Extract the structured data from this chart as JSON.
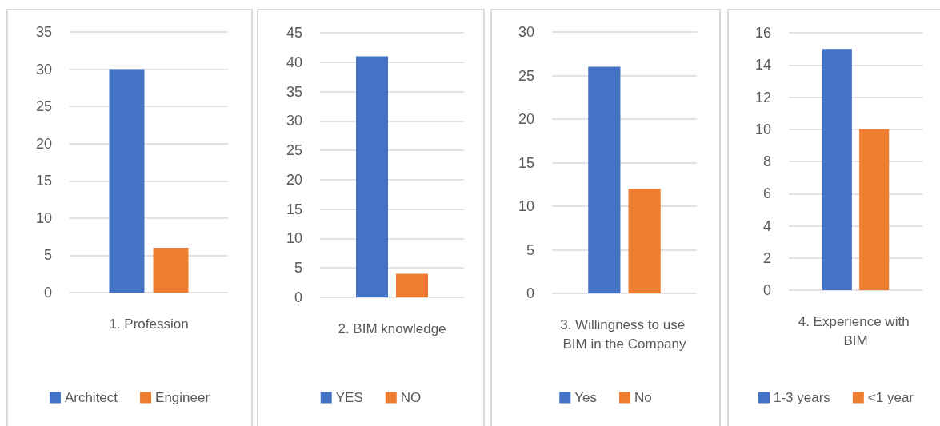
{
  "chart_data": [
    {
      "type": "bar",
      "categories": [
        "1. Profession"
      ],
      "series": [
        {
          "name": "Architect",
          "color": "#4472c4",
          "values": [
            30
          ]
        },
        {
          "name": "Engineer",
          "color": "#ed7d31",
          "values": [
            6
          ]
        }
      ],
      "ylim": [
        0,
        35
      ],
      "yticks": [
        0,
        5,
        10,
        15,
        20,
        25,
        30,
        35
      ],
      "grid": "y",
      "legend": "bottom"
    },
    {
      "type": "bar",
      "categories": [
        "2. BIM knowledge"
      ],
      "series": [
        {
          "name": "YES",
          "color": "#4472c4",
          "values": [
            41
          ]
        },
        {
          "name": "NO",
          "color": "#ed7d31",
          "values": [
            4
          ]
        }
      ],
      "ylim": [
        0,
        45
      ],
      "yticks": [
        0,
        5,
        10,
        15,
        20,
        25,
        30,
        35,
        40,
        45
      ],
      "grid": "y",
      "legend": "bottom"
    },
    {
      "type": "bar",
      "categories": [
        "3. Willingness to use BIM in the Company"
      ],
      "series": [
        {
          "name": "Yes",
          "color": "#4472c4",
          "values": [
            26
          ]
        },
        {
          "name": "No",
          "color": "#ed7d31",
          "values": [
            12
          ]
        }
      ],
      "ylim": [
        0,
        30
      ],
      "yticks": [
        0,
        5,
        10,
        15,
        20,
        25,
        30
      ],
      "grid": "y",
      "legend": "bottom"
    },
    {
      "type": "bar",
      "categories": [
        "4. Experience with BIM"
      ],
      "series": [
        {
          "name": "1-3 years",
          "color": "#4472c4",
          "values": [
            15
          ]
        },
        {
          "name": "<1 year",
          "color": "#ed7d31",
          "values": [
            10
          ]
        }
      ],
      "ylim": [
        0,
        16
      ],
      "yticks": [
        0,
        2,
        4,
        6,
        8,
        10,
        12,
        14,
        16
      ],
      "grid": "y",
      "legend": "bottom"
    }
  ]
}
